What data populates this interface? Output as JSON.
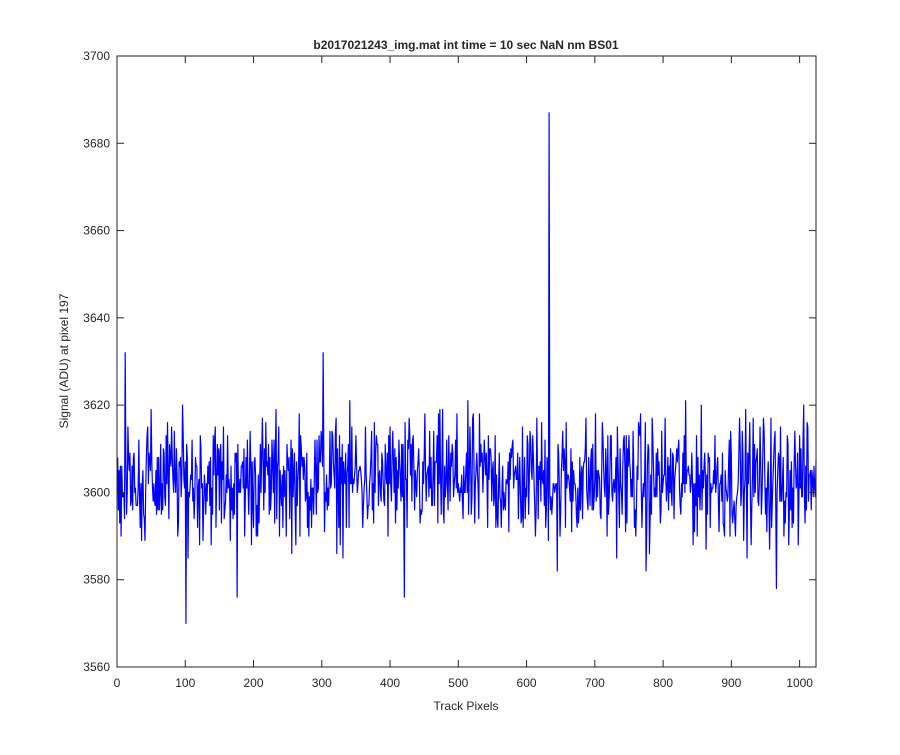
{
  "chart_data": {
    "type": "line",
    "title": "b2017021243_img.mat int time = 10 sec  NaN nm BS01",
    "xlabel": "Track Pixels",
    "ylabel": "Signal (ADU) at pixel 197",
    "xlim": [
      0,
      1024
    ],
    "ylim": [
      3560,
      3700
    ],
    "xticks": [
      0,
      100,
      200,
      300,
      400,
      500,
      600,
      700,
      800,
      900,
      1000
    ],
    "yticks": [
      3560,
      3580,
      3600,
      3620,
      3640,
      3660,
      3680,
      3700
    ],
    "grid": false,
    "legend": "none",
    "series": [
      {
        "color": "#0000ff",
        "noise_mean": 3603,
        "spikes": [
          {
            "x": 12,
            "y": 3632
          },
          {
            "x": 101,
            "y": 3570
          },
          {
            "x": 176,
            "y": 3576
          },
          {
            "x": 302,
            "y": 3632
          },
          {
            "x": 421,
            "y": 3576
          },
          {
            "x": 633,
            "y": 3687
          },
          {
            "x": 645,
            "y": 3582
          },
          {
            "x": 775,
            "y": 3582
          },
          {
            "x": 966,
            "y": 3578
          }
        ]
      }
    ]
  },
  "colors": {
    "line": "#0000ff",
    "axes": "#262626",
    "background": "#ffffff"
  }
}
